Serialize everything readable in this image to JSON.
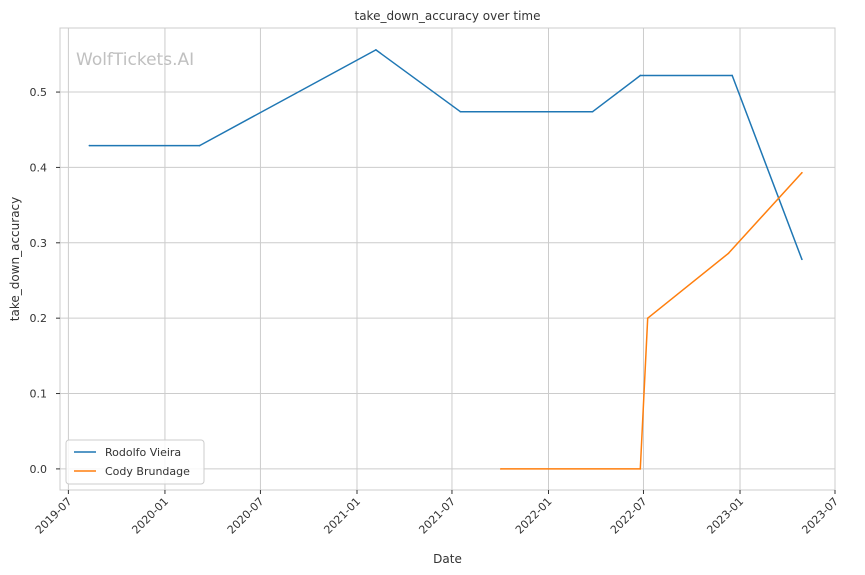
{
  "chart_data": {
    "type": "line",
    "title": "take_down_accuracy over time",
    "xlabel": "Date",
    "ylabel": "take_down_accuracy",
    "watermark": "WolfTickets.AI",
    "xlim": [
      "2019-06-15",
      "2023-07-01"
    ],
    "ylim": [
      -0.028,
      0.585
    ],
    "x_ticks": [
      "2019-07",
      "2020-01",
      "2020-07",
      "2021-01",
      "2021-07",
      "2022-01",
      "2022-07",
      "2023-01",
      "2023-07"
    ],
    "y_ticks": [
      0.0,
      0.1,
      0.2,
      0.3,
      0.4,
      0.5
    ],
    "y_tick_labels": [
      "0.0",
      "0.1",
      "0.2",
      "0.3",
      "0.4",
      "0.5"
    ],
    "grid": true,
    "legend_position": "lower-left",
    "series": [
      {
        "name": "Rodolfo Vieira",
        "color": "#1f77b4",
        "points": [
          {
            "x": "2019-08-10",
            "y": 0.429
          },
          {
            "x": "2020-03-07",
            "y": 0.429
          },
          {
            "x": "2021-02-06",
            "y": 0.556
          },
          {
            "x": "2021-07-17",
            "y": 0.474
          },
          {
            "x": "2022-03-26",
            "y": 0.474
          },
          {
            "x": "2022-06-25",
            "y": 0.522
          },
          {
            "x": "2022-12-17",
            "y": 0.522
          },
          {
            "x": "2023-04-29",
            "y": 0.278
          }
        ]
      },
      {
        "name": "Cody Brundage",
        "color": "#ff7f0e",
        "points": [
          {
            "x": "2021-10-02",
            "y": 0.0
          },
          {
            "x": "2022-06-25",
            "y": 0.0
          },
          {
            "x": "2022-07-09",
            "y": 0.2
          },
          {
            "x": "2022-12-10",
            "y": 0.286
          },
          {
            "x": "2023-04-29",
            "y": 0.393
          }
        ]
      }
    ]
  }
}
